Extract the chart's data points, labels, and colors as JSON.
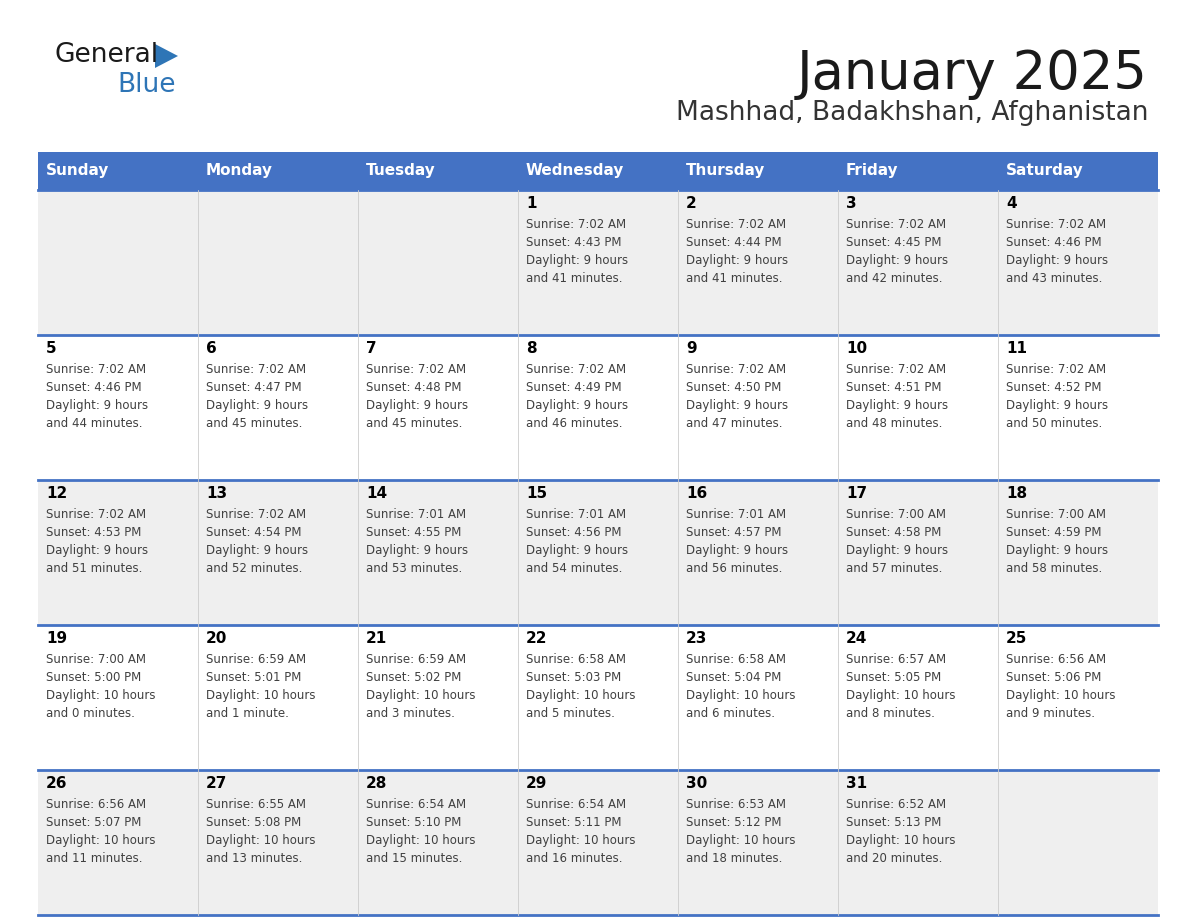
{
  "title": "January 2025",
  "subtitle": "Mashhad, Badakhshan, Afghanistan",
  "days_of_week": [
    "Sunday",
    "Monday",
    "Tuesday",
    "Wednesday",
    "Thursday",
    "Friday",
    "Saturday"
  ],
  "header_bg": "#4472c4",
  "header_text": "#ffffff",
  "row_bg_even": "#efefef",
  "row_bg_odd": "#ffffff",
  "separator_color": "#4472c4",
  "day_number_color": "#000000",
  "cell_text_color": "#404040",
  "title_color": "#1a1a1a",
  "subtitle_color": "#333333",
  "general_text_color": "#1a1a1a",
  "general_blue_color": "#2e75b6",
  "logo_triangle_color": "#2e75b6",
  "calendar_data": [
    {
      "day": 1,
      "col": 3,
      "row": 0,
      "sunrise": "7:02 AM",
      "sunset": "4:43 PM",
      "daylight_h": "9 hours",
      "daylight_m": "and 41 minutes."
    },
    {
      "day": 2,
      "col": 4,
      "row": 0,
      "sunrise": "7:02 AM",
      "sunset": "4:44 PM",
      "daylight_h": "9 hours",
      "daylight_m": "and 41 minutes."
    },
    {
      "day": 3,
      "col": 5,
      "row": 0,
      "sunrise": "7:02 AM",
      "sunset": "4:45 PM",
      "daylight_h": "9 hours",
      "daylight_m": "and 42 minutes."
    },
    {
      "day": 4,
      "col": 6,
      "row": 0,
      "sunrise": "7:02 AM",
      "sunset": "4:46 PM",
      "daylight_h": "9 hours",
      "daylight_m": "and 43 minutes."
    },
    {
      "day": 5,
      "col": 0,
      "row": 1,
      "sunrise": "7:02 AM",
      "sunset": "4:46 PM",
      "daylight_h": "9 hours",
      "daylight_m": "and 44 minutes."
    },
    {
      "day": 6,
      "col": 1,
      "row": 1,
      "sunrise": "7:02 AM",
      "sunset": "4:47 PM",
      "daylight_h": "9 hours",
      "daylight_m": "and 45 minutes."
    },
    {
      "day": 7,
      "col": 2,
      "row": 1,
      "sunrise": "7:02 AM",
      "sunset": "4:48 PM",
      "daylight_h": "9 hours",
      "daylight_m": "and 45 minutes."
    },
    {
      "day": 8,
      "col": 3,
      "row": 1,
      "sunrise": "7:02 AM",
      "sunset": "4:49 PM",
      "daylight_h": "9 hours",
      "daylight_m": "and 46 minutes."
    },
    {
      "day": 9,
      "col": 4,
      "row": 1,
      "sunrise": "7:02 AM",
      "sunset": "4:50 PM",
      "daylight_h": "9 hours",
      "daylight_m": "and 47 minutes."
    },
    {
      "day": 10,
      "col": 5,
      "row": 1,
      "sunrise": "7:02 AM",
      "sunset": "4:51 PM",
      "daylight_h": "9 hours",
      "daylight_m": "and 48 minutes."
    },
    {
      "day": 11,
      "col": 6,
      "row": 1,
      "sunrise": "7:02 AM",
      "sunset": "4:52 PM",
      "daylight_h": "9 hours",
      "daylight_m": "and 50 minutes."
    },
    {
      "day": 12,
      "col": 0,
      "row": 2,
      "sunrise": "7:02 AM",
      "sunset": "4:53 PM",
      "daylight_h": "9 hours",
      "daylight_m": "and 51 minutes."
    },
    {
      "day": 13,
      "col": 1,
      "row": 2,
      "sunrise": "7:02 AM",
      "sunset": "4:54 PM",
      "daylight_h": "9 hours",
      "daylight_m": "and 52 minutes."
    },
    {
      "day": 14,
      "col": 2,
      "row": 2,
      "sunrise": "7:01 AM",
      "sunset": "4:55 PM",
      "daylight_h": "9 hours",
      "daylight_m": "and 53 minutes."
    },
    {
      "day": 15,
      "col": 3,
      "row": 2,
      "sunrise": "7:01 AM",
      "sunset": "4:56 PM",
      "daylight_h": "9 hours",
      "daylight_m": "and 54 minutes."
    },
    {
      "day": 16,
      "col": 4,
      "row": 2,
      "sunrise": "7:01 AM",
      "sunset": "4:57 PM",
      "daylight_h": "9 hours",
      "daylight_m": "and 56 minutes."
    },
    {
      "day": 17,
      "col": 5,
      "row": 2,
      "sunrise": "7:00 AM",
      "sunset": "4:58 PM",
      "daylight_h": "9 hours",
      "daylight_m": "and 57 minutes."
    },
    {
      "day": 18,
      "col": 6,
      "row": 2,
      "sunrise": "7:00 AM",
      "sunset": "4:59 PM",
      "daylight_h": "9 hours",
      "daylight_m": "and 58 minutes."
    },
    {
      "day": 19,
      "col": 0,
      "row": 3,
      "sunrise": "7:00 AM",
      "sunset": "5:00 PM",
      "daylight_h": "10 hours",
      "daylight_m": "and 0 minutes."
    },
    {
      "day": 20,
      "col": 1,
      "row": 3,
      "sunrise": "6:59 AM",
      "sunset": "5:01 PM",
      "daylight_h": "10 hours",
      "daylight_m": "and 1 minute."
    },
    {
      "day": 21,
      "col": 2,
      "row": 3,
      "sunrise": "6:59 AM",
      "sunset": "5:02 PM",
      "daylight_h": "10 hours",
      "daylight_m": "and 3 minutes."
    },
    {
      "day": 22,
      "col": 3,
      "row": 3,
      "sunrise": "6:58 AM",
      "sunset": "5:03 PM",
      "daylight_h": "10 hours",
      "daylight_m": "and 5 minutes."
    },
    {
      "day": 23,
      "col": 4,
      "row": 3,
      "sunrise": "6:58 AM",
      "sunset": "5:04 PM",
      "daylight_h": "10 hours",
      "daylight_m": "and 6 minutes."
    },
    {
      "day": 24,
      "col": 5,
      "row": 3,
      "sunrise": "6:57 AM",
      "sunset": "5:05 PM",
      "daylight_h": "10 hours",
      "daylight_m": "and 8 minutes."
    },
    {
      "day": 25,
      "col": 6,
      "row": 3,
      "sunrise": "6:56 AM",
      "sunset": "5:06 PM",
      "daylight_h": "10 hours",
      "daylight_m": "and 9 minutes."
    },
    {
      "day": 26,
      "col": 0,
      "row": 4,
      "sunrise": "6:56 AM",
      "sunset": "5:07 PM",
      "daylight_h": "10 hours",
      "daylight_m": "and 11 minutes."
    },
    {
      "day": 27,
      "col": 1,
      "row": 4,
      "sunrise": "6:55 AM",
      "sunset": "5:08 PM",
      "daylight_h": "10 hours",
      "daylight_m": "and 13 minutes."
    },
    {
      "day": 28,
      "col": 2,
      "row": 4,
      "sunrise": "6:54 AM",
      "sunset": "5:10 PM",
      "daylight_h": "10 hours",
      "daylight_m": "and 15 minutes."
    },
    {
      "day": 29,
      "col": 3,
      "row": 4,
      "sunrise": "6:54 AM",
      "sunset": "5:11 PM",
      "daylight_h": "10 hours",
      "daylight_m": "and 16 minutes."
    },
    {
      "day": 30,
      "col": 4,
      "row": 4,
      "sunrise": "6:53 AM",
      "sunset": "5:12 PM",
      "daylight_h": "10 hours",
      "daylight_m": "and 18 minutes."
    },
    {
      "day": 31,
      "col": 5,
      "row": 4,
      "sunrise": "6:52 AM",
      "sunset": "5:13 PM",
      "daylight_h": "10 hours",
      "daylight_m": "and 20 minutes."
    }
  ]
}
